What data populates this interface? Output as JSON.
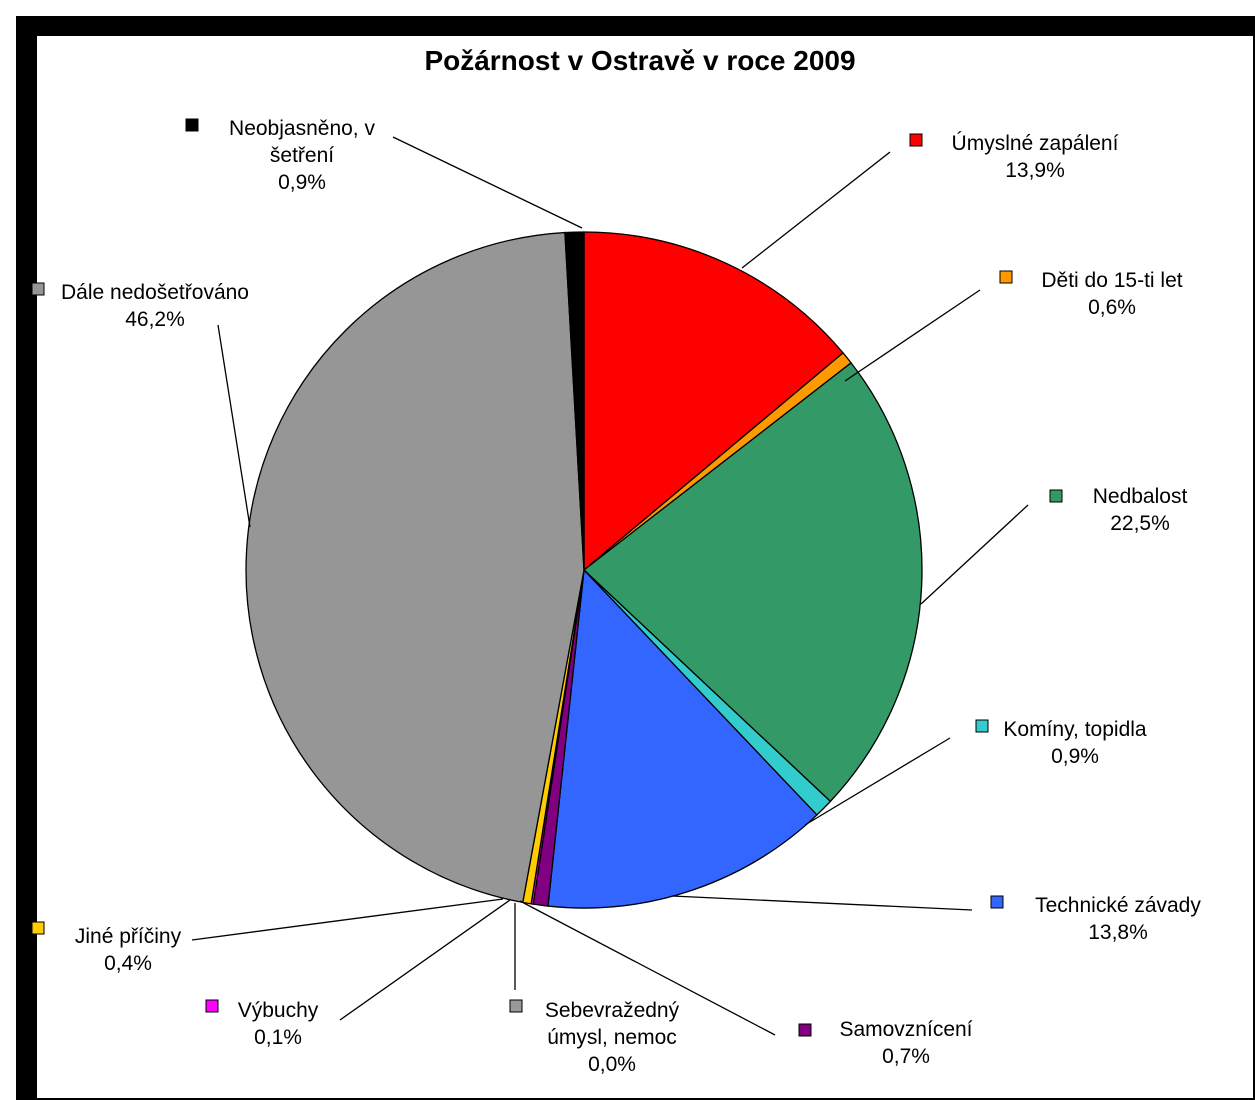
{
  "chart_data": {
    "type": "pie",
    "title": "Požárnost v Ostravě v roce 2009",
    "slices": [
      {
        "label_lines": [
          "Úmyslné zapálení"
        ],
        "value_label": "13,9%",
        "value": 13.9,
        "color": "#ff0000"
      },
      {
        "label_lines": [
          "Děti do 15-ti let"
        ],
        "value_label": "0,6%",
        "value": 0.6,
        "color": "#ff9900"
      },
      {
        "label_lines": [
          "Nedbalost"
        ],
        "value_label": "22,5%",
        "value": 22.5,
        "color": "#339966"
      },
      {
        "label_lines": [
          "Komíny, topidla"
        ],
        "value_label": "0,9%",
        "value": 0.9,
        "color": "#33cccc"
      },
      {
        "label_lines": [
          "Technické závady"
        ],
        "value_label": "13,8%",
        "value": 13.8,
        "color": "#3366ff"
      },
      {
        "label_lines": [
          "Samovznícení"
        ],
        "value_label": "0,7%",
        "value": 0.7,
        "color": "#800080"
      },
      {
        "label_lines": [
          "Sebevražedný",
          "úmysl, nemoc"
        ],
        "value_label": "0,0%",
        "value": 0.0,
        "color": "#999999"
      },
      {
        "label_lines": [
          "Výbuchy"
        ],
        "value_label": "0,1%",
        "value": 0.1,
        "color": "#ff00ff"
      },
      {
        "label_lines": [
          "Jiné příčiny"
        ],
        "value_label": "0,4%",
        "value": 0.4,
        "color": "#ffcc00"
      },
      {
        "label_lines": [
          "Dále nedošetřováno"
        ],
        "value_label": "46,2%",
        "value": 46.2,
        "color": "#969696"
      },
      {
        "label_lines": [
          "Neobjasněno, v",
          "šetření"
        ],
        "value_label": "0,9%",
        "value": 0.9,
        "color": "#000000"
      }
    ]
  }
}
